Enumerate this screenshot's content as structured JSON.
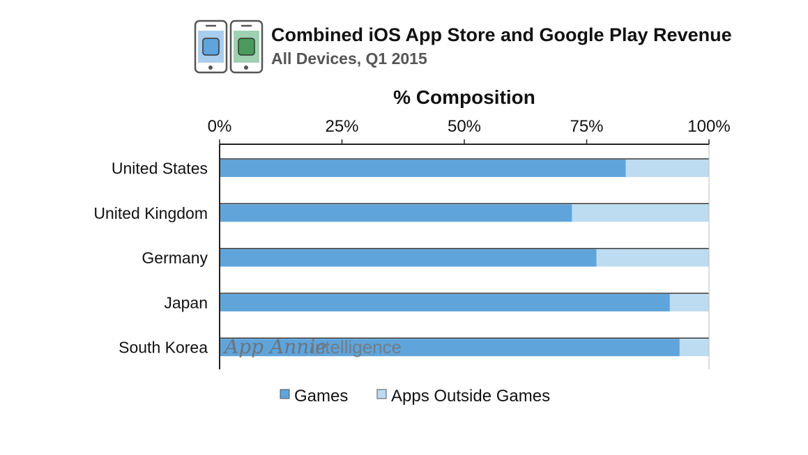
{
  "header": {
    "title": "Combined iOS App Store and Google Play Revenue",
    "subtitle": "All Devices, Q1 2015",
    "icons": [
      "ios-phone-icon",
      "android-phone-icon"
    ]
  },
  "watermark": {
    "brand": "App Annie",
    "suffix": "intelligence"
  },
  "colors": {
    "games": "#5fa4db",
    "apps_outside_games": "#bddcf2",
    "axis": "#222222",
    "ios_phone_screen": "#a9cdef",
    "ios_phone_button": "#5fa4db",
    "android_phone_screen": "#9fd0b1",
    "android_phone_button": "#4a9a5c"
  },
  "chart_data": {
    "type": "bar",
    "orientation": "horizontal",
    "stacked": true,
    "title": "Combined iOS App Store and Google Play Revenue",
    "subtitle": "All Devices, Q1 2015",
    "xlabel": "% Composition",
    "ylabel": "",
    "xlim": [
      0,
      100
    ],
    "x_ticks": [
      "0%",
      "25%",
      "50%",
      "75%",
      "100%"
    ],
    "categories": [
      "United States",
      "United Kingdom",
      "Germany",
      "Japan",
      "South Korea"
    ],
    "series": [
      {
        "name": "Games",
        "values": [
          83,
          72,
          77,
          92,
          94
        ]
      },
      {
        "name": "Apps Outside Games",
        "values": [
          17,
          28,
          23,
          8,
          6
        ]
      }
    ],
    "legend_position": "bottom",
    "grid": false
  }
}
